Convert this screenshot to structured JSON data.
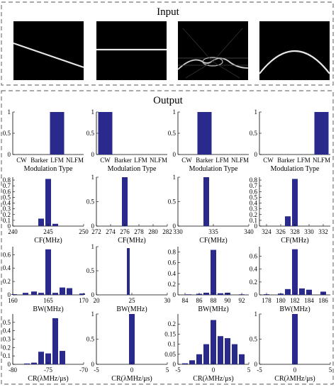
{
  "input": {
    "title": "Input",
    "images": [
      {
        "kind": "lfm-descending"
      },
      {
        "kind": "flat-cw"
      },
      {
        "kind": "barker-ambiguity"
      },
      {
        "kind": "nlfm-arch"
      }
    ]
  },
  "output": {
    "title": "Output"
  },
  "bar_color": "#2a2a8c",
  "chart_data": [
    {
      "type": "bar",
      "group": "modulation",
      "categories": [
        "CW",
        "Barker",
        "LFM",
        "NLFM"
      ],
      "values": [
        0,
        0,
        1,
        0
      ],
      "ylim": [
        0,
        1
      ],
      "yticks": [
        0,
        0.5,
        1
      ],
      "xlabel": "Modulation Type"
    },
    {
      "type": "bar",
      "group": "modulation",
      "categories": [
        "CW",
        "Barker",
        "LFM",
        "NLFM"
      ],
      "values": [
        1,
        0,
        0,
        0
      ],
      "ylim": [
        0,
        1
      ],
      "yticks": [
        0,
        0.5,
        1
      ],
      "xlabel": "Modulation Type"
    },
    {
      "type": "bar",
      "group": "modulation",
      "categories": [
        "CW",
        "Barker",
        "LFM",
        "NLFM"
      ],
      "values": [
        0,
        1,
        0,
        0
      ],
      "ylim": [
        0,
        1
      ],
      "yticks": [
        0,
        0.5,
        1
      ],
      "xlabel": "Modulation Type"
    },
    {
      "type": "bar",
      "group": "modulation",
      "categories": [
        "CW",
        "Barker",
        "LFM",
        "NLFM"
      ],
      "values": [
        0,
        0,
        0,
        1
      ],
      "ylim": [
        0,
        1
      ],
      "yticks": [
        0,
        0.5,
        1
      ],
      "xlabel": "Modulation Type"
    },
    {
      "type": "bar",
      "group": "cf",
      "x": [
        244,
        245,
        246
      ],
      "values": [
        0.13,
        0.82,
        0.04
      ],
      "bar_width": 0.8,
      "xlim": [
        240,
        250
      ],
      "xticks": [
        240,
        245,
        250
      ],
      "ylim": [
        0,
        0.85
      ],
      "yticks": [
        0,
        0.1,
        0.2,
        0.3,
        0.4,
        0.5,
        0.6,
        0.7,
        0.8
      ],
      "xlabel": "CF(MHz)"
    },
    {
      "type": "bar",
      "group": "cf",
      "x": [
        276
      ],
      "values": [
        1
      ],
      "bar_width": 0.8,
      "xlim": [
        272,
        282
      ],
      "xticks": [
        272,
        274,
        276,
        278,
        280,
        282
      ],
      "ylim": [
        0,
        1
      ],
      "yticks": [
        0,
        0.5,
        1
      ],
      "xlabel": "CF(MHz)"
    },
    {
      "type": "bar",
      "group": "cf",
      "x": [
        334
      ],
      "values": [
        1
      ],
      "bar_width": 0.8,
      "xlim": [
        330,
        340
      ],
      "xticks": [
        330,
        335,
        340
      ],
      "ylim": [
        0,
        1
      ],
      "yticks": [
        0,
        0.5,
        1
      ],
      "xlabel": "CF(MHz)"
    },
    {
      "type": "bar",
      "group": "cf",
      "x": [
        327,
        328
      ],
      "values": [
        0.17,
        0.82
      ],
      "bar_width": 0.8,
      "xlim": [
        323,
        333
      ],
      "xticks": [
        324,
        326,
        328,
        330,
        332
      ],
      "ylim": [
        0,
        0.85
      ],
      "yticks": [
        0,
        0.1,
        0.2,
        0.3,
        0.4,
        0.5,
        0.6,
        0.7,
        0.8
      ],
      "xlabel": "CF(MHz)"
    },
    {
      "type": "bar",
      "group": "bw",
      "x": [
        160.2,
        161.8,
        163,
        164,
        165,
        166,
        167,
        168,
        169.8
      ],
      "values": [
        0.01,
        0.03,
        0.05,
        0.03,
        0.68,
        0.03,
        0.11,
        0.1,
        0.02
      ],
      "bar_width": 0.8,
      "xlim": [
        160,
        170
      ],
      "xticks": [
        160,
        165,
        170
      ],
      "ylim": [
        0,
        0.72
      ],
      "yticks": [
        0,
        0.2,
        0.4,
        0.6
      ],
      "xlabel": "BW(MHz)"
    },
    {
      "type": "bar",
      "group": "bw",
      "x": [
        24.5
      ],
      "values": [
        0.97
      ],
      "bar_width": 0.4,
      "xlim": [
        20,
        30
      ],
      "xticks": [
        20,
        25,
        30
      ],
      "ylim": [
        0,
        1
      ],
      "yticks": [
        0,
        0.5,
        1
      ],
      "xlabel": "BW(MHz)"
    },
    {
      "type": "bar",
      "group": "bw",
      "x": [
        84.5,
        86,
        87,
        88,
        89,
        90,
        92
      ],
      "values": [
        0.01,
        0.02,
        0.04,
        0.84,
        0.03,
        0.04,
        0.01
      ],
      "bar_width": 0.8,
      "xlim": [
        83,
        93
      ],
      "xticks": [
        84,
        86,
        88,
        90,
        92
      ],
      "ylim": [
        0,
        0.9
      ],
      "yticks": [
        0,
        0.2,
        0.4,
        0.6,
        0.8
      ],
      "xlabel": "BW(MHz)"
    },
    {
      "type": "bar",
      "group": "bw",
      "x": [
        178,
        180,
        181,
        182,
        183,
        184,
        186
      ],
      "values": [
        0.01,
        0.02,
        0.09,
        0.71,
        0.1,
        0.08,
        0.05
      ],
      "bar_width": 0.8,
      "xlim": [
        177,
        187
      ],
      "xticks": [
        178,
        180,
        182,
        184,
        186
      ],
      "ylim": [
        0,
        0.75
      ],
      "yticks": [
        0,
        0.2,
        0.4,
        0.6
      ],
      "xlabel": "BW(MHz)"
    },
    {
      "type": "bar",
      "group": "cr",
      "x": [
        -78,
        -77,
        -76,
        -75,
        -74,
        -73
      ],
      "values": [
        0.01,
        0.02,
        0.15,
        0.13,
        0.55,
        0.16
      ],
      "bar_width": 0.8,
      "xlim": [
        -80,
        -70
      ],
      "xticks": [
        -80,
        -75,
        -70
      ],
      "ylim": [
        0,
        0.6
      ],
      "yticks": [
        0,
        0.1,
        0.2,
        0.3,
        0.4,
        0.5
      ],
      "xlabel": "CR(λMHz/μs)"
    },
    {
      "type": "bar",
      "group": "cr",
      "x": [
        0
      ],
      "values": [
        1
      ],
      "bar_width": 0.8,
      "xlim": [
        -5,
        5
      ],
      "xticks": [
        -5,
        0,
        5
      ],
      "ylim": [
        0,
        1
      ],
      "yticks": [
        0,
        0.5,
        1
      ],
      "xlabel": "CR(λMHz/μs)"
    },
    {
      "type": "bar",
      "group": "cr",
      "x": [
        -4,
        -3,
        -2,
        -1,
        0,
        1,
        2,
        3,
        4
      ],
      "values": [
        0.005,
        0.02,
        0.05,
        0.1,
        0.22,
        0.14,
        0.13,
        0.1,
        0.05
      ],
      "bar_width": 0.8,
      "xlim": [
        -5,
        5
      ],
      "xticks": [
        -5,
        0,
        5
      ],
      "ylim": [
        0,
        0.25
      ],
      "yticks": [
        0,
        0.05,
        0.1,
        0.15,
        0.2
      ],
      "xlabel": "CR(λMHz/μs)"
    },
    {
      "type": "bar",
      "group": "cr",
      "x": [
        0
      ],
      "values": [
        1
      ],
      "bar_width": 0.8,
      "xlim": [
        -5,
        5
      ],
      "xticks": [
        -5,
        0,
        5
      ],
      "ylim": [
        0,
        1
      ],
      "yticks": [
        0,
        0.5,
        1
      ],
      "xlabel": "CR(λMHz/μs)"
    }
  ]
}
